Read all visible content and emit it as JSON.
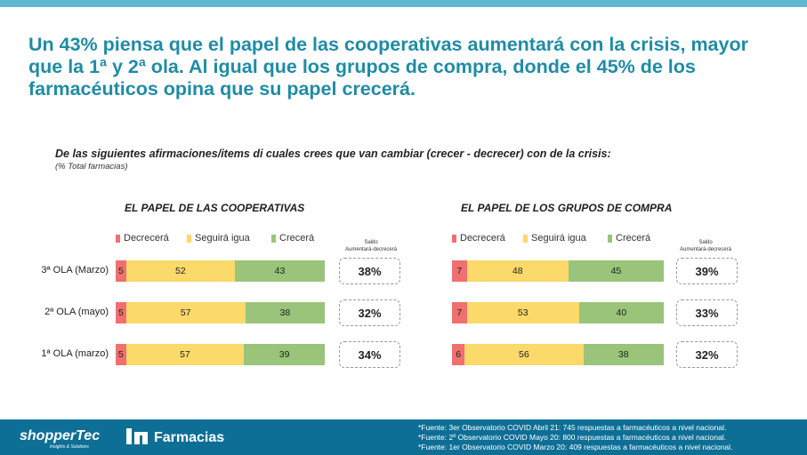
{
  "headline": "Un 43% piensa que el papel de las cooperativas aumentará con la crisis, mayor que la 1ª y 2ª ola. Al igual que los grupos de compra, donde el 45% de los farmacéuticos opina que su papel crecerá.",
  "question": "De las siguientes afirmaciones/items di cuales crees que van cambiar (crecer - decrecer) con de la crisis:",
  "question_note": "(% Total farmacias)",
  "legend": [
    {
      "label": "Decrecerá",
      "color": "#f07070"
    },
    {
      "label": "Seguirá igua",
      "color": "#fbd96a"
    },
    {
      "label": "Crecerá",
      "color": "#99c47a"
    }
  ],
  "saldo_label": "Saldo Aumentará-decrecerá",
  "row_labels": [
    "3ª OLA (Marzo)",
    "2ª OLA (mayo)",
    "1ª OLA (marzo)"
  ],
  "chart_data": [
    {
      "type": "bar",
      "title": "EL PAPEL DE LAS COOPERATIVAS",
      "categories": [
        "3ª OLA (Marzo)",
        "2ª OLA (mayo)",
        "1ª OLA (marzo)"
      ],
      "series": [
        {
          "name": "Decrecerá",
          "values": [
            5,
            5,
            5
          ]
        },
        {
          "name": "Seguirá igua",
          "values": [
            52,
            57,
            57
          ]
        },
        {
          "name": "Crecerá",
          "values": [
            43,
            38,
            39
          ]
        }
      ],
      "saldo": [
        "38%",
        "32%",
        "34%"
      ],
      "stacked": true,
      "orientation": "horizontal"
    },
    {
      "type": "bar",
      "title": "EL PAPEL DE LOS GRUPOS DE COMPRA",
      "categories": [
        "3ª OLA (Marzo)",
        "2ª OLA (mayo)",
        "1ª OLA (marzo)"
      ],
      "series": [
        {
          "name": "Decrecerá",
          "values": [
            7,
            7,
            6
          ]
        },
        {
          "name": "Seguirá igua",
          "values": [
            48,
            53,
            56
          ]
        },
        {
          "name": "Crecerá",
          "values": [
            45,
            40,
            38
          ]
        }
      ],
      "saldo": [
        "39%",
        "33%",
        "32%"
      ],
      "stacked": true,
      "orientation": "horizontal"
    }
  ],
  "footer": {
    "logo_shopper": "shopperTec",
    "logo_shopper_sub": "Insights & Solutions",
    "logo_farmacias": "Farmacias",
    "sources": [
      "*Fuente: 3er Observatorio COVID Abril 21: 745 respuestas a farmacéuticos a nivel nacional.",
      "*Fuente: 2º Observatorio COVID Mayo 20: 800 respuestas a farmacéuticos a nivel nacional.",
      "*Fuente: 1er Observatorio COVID Marzo 20: 409 respuestas a farmacéuticos a nivel nacional."
    ]
  }
}
